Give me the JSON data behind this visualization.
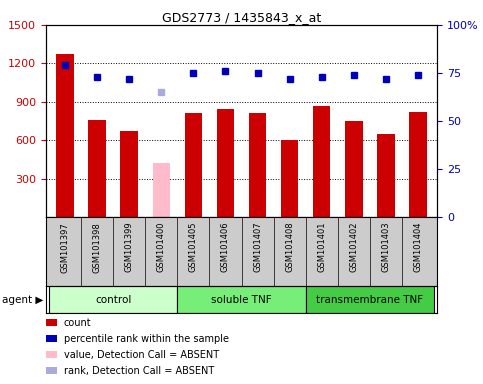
{
  "title": "GDS2773 / 1435843_x_at",
  "samples": [
    "GSM101397",
    "GSM101398",
    "GSM101399",
    "GSM101400",
    "GSM101405",
    "GSM101406",
    "GSM101407",
    "GSM101408",
    "GSM101401",
    "GSM101402",
    "GSM101403",
    "GSM101404"
  ],
  "count_values": [
    1270,
    760,
    670,
    null,
    810,
    840,
    810,
    600,
    870,
    750,
    650,
    820
  ],
  "count_absent": [
    null,
    null,
    null,
    420,
    null,
    null,
    null,
    null,
    null,
    null,
    null,
    null
  ],
  "percentile_values": [
    79,
    73,
    72,
    null,
    75,
    76,
    75,
    72,
    73,
    74,
    72,
    74
  ],
  "percentile_absent": [
    null,
    null,
    null,
    65,
    null,
    null,
    null,
    null,
    null,
    null,
    null,
    null
  ],
  "ylim_left": [
    0,
    1500
  ],
  "ylim_right": [
    0,
    100
  ],
  "yticks_left": [
    300,
    600,
    900,
    1200,
    1500
  ],
  "yticks_right": [
    0,
    25,
    50,
    75,
    100
  ],
  "groups": [
    {
      "label": "control",
      "start": 0,
      "end": 3,
      "color": "#ccffcc"
    },
    {
      "label": "soluble TNF",
      "start": 4,
      "end": 7,
      "color": "#77ee77"
    },
    {
      "label": "transmembrane TNF",
      "start": 8,
      "end": 11,
      "color": "#44cc44"
    }
  ],
  "bar_color": "#cc0000",
  "bar_absent_color": "#ffbbcc",
  "dot_color": "#0000bb",
  "dot_absent_color": "#aaaadd",
  "legend_items": [
    {
      "label": "count",
      "color": "#cc0000"
    },
    {
      "label": "percentile rank within the sample",
      "color": "#0000bb"
    },
    {
      "label": "value, Detection Call = ABSENT",
      "color": "#ffbbcc"
    },
    {
      "label": "rank, Detection Call = ABSENT",
      "color": "#aaaadd"
    }
  ],
  "ylabel_left_color": "#cc0000",
  "ylabel_right_color": "#0000bb",
  "grid_color": "black",
  "label_bg_color": "#cccccc",
  "agent_label": "agent ▶"
}
